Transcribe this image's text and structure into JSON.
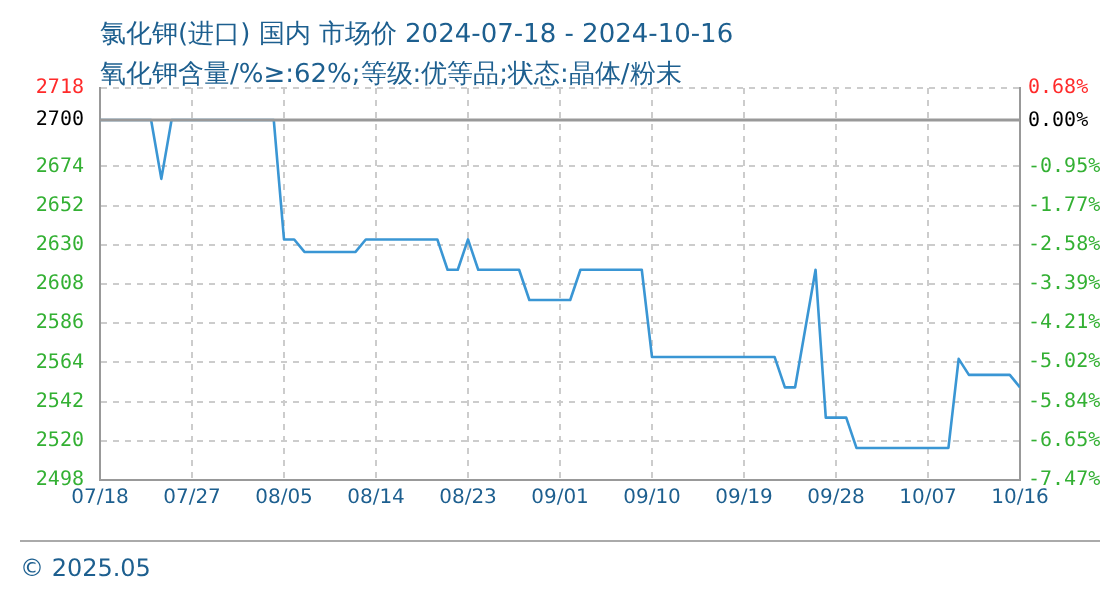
{
  "chart_data": {
    "type": "line",
    "title": "氯化钾(进口) 国内 市场价 2024-07-18 - 2024-10-16",
    "subtitle": "氧化钾含量/%≥:62%;等级:优等品;状态:晶体/粉末",
    "annotations": [
      "© 2025.05"
    ],
    "x": [
      "2024-07-18",
      "2024-07-23",
      "2024-07-24",
      "2024-07-25",
      "2024-08-04",
      "2024-08-05",
      "2024-08-06",
      "2024-08-07",
      "2024-08-12",
      "2024-08-13",
      "2024-08-20",
      "2024-08-21",
      "2024-08-22",
      "2024-08-23",
      "2024-08-24",
      "2024-08-28",
      "2024-08-29",
      "2024-09-02",
      "2024-09-03",
      "2024-09-09",
      "2024-09-10",
      "2024-09-22",
      "2024-09-23",
      "2024-09-24",
      "2024-09-26",
      "2024-09-27",
      "2024-09-29",
      "2024-09-30",
      "2024-10-09",
      "2024-10-10",
      "2024-10-11",
      "2024-10-15",
      "2024-10-16"
    ],
    "series": [
      {
        "color": "#3a96d4",
        "values": [
          2700,
          2700,
          2667,
          2700,
          2700,
          2633,
          2633,
          2626,
          2626,
          2633,
          2633,
          2616,
          2616,
          2633,
          2616,
          2616,
          2599,
          2599,
          2616,
          2616,
          2567,
          2567,
          2550,
          2550,
          2616,
          2533,
          2533,
          2516,
          2516,
          2566,
          2557,
          2557,
          2550
        ]
      }
    ],
    "xlim": [
      "2024-07-18",
      "2024-10-16"
    ],
    "xticks": [
      {
        "value": "2024-07-18",
        "label": "07/18"
      },
      {
        "value": "2024-07-27",
        "label": "07/27"
      },
      {
        "value": "2024-08-05",
        "label": "08/05"
      },
      {
        "value": "2024-08-14",
        "label": "08/14"
      },
      {
        "value": "2024-08-23",
        "label": "08/23"
      },
      {
        "value": "2024-09-01",
        "label": "09/01"
      },
      {
        "value": "2024-09-10",
        "label": "09/10"
      },
      {
        "value": "2024-09-19",
        "label": "09/19"
      },
      {
        "value": "2024-09-28",
        "label": "09/28"
      },
      {
        "value": "2024-10-07",
        "label": "10/07"
      },
      {
        "value": "2024-10-16",
        "label": "10/16"
      }
    ],
    "ylim": [
      2498,
      2718
    ],
    "yticks": [
      2718,
      2700,
      2674,
      2652,
      2630,
      2608,
      2586,
      2564,
      2542,
      2520,
      2498
    ],
    "y2lim": [
      -7.47,
      0.68
    ],
    "y2ticks": [
      {
        "value": 0.68,
        "label": "0.68%"
      },
      {
        "value": 0,
        "label": "0.00%"
      },
      {
        "value": -0.95,
        "label": "-0.95%"
      },
      {
        "value": -1.77,
        "label": "-1.77%"
      },
      {
        "value": -2.58,
        "label": "-2.58%"
      },
      {
        "value": -3.39,
        "label": "-3.39%"
      },
      {
        "value": -4.21,
        "label": "-4.21%"
      },
      {
        "value": -5.02,
        "label": "-5.02%"
      },
      {
        "value": -5.84,
        "label": "-5.84%"
      },
      {
        "value": -6.65,
        "label": "-6.65%"
      },
      {
        "value": -7.47,
        "label": "-7.47%"
      }
    ],
    "ref_lines": [
      {
        "axis": "y",
        "value": 2700,
        "color": "#999999",
        "line_style": "solid"
      }
    ],
    "grid": true,
    "legend": false,
    "marker": "none",
    "line_style": "solid"
  }
}
